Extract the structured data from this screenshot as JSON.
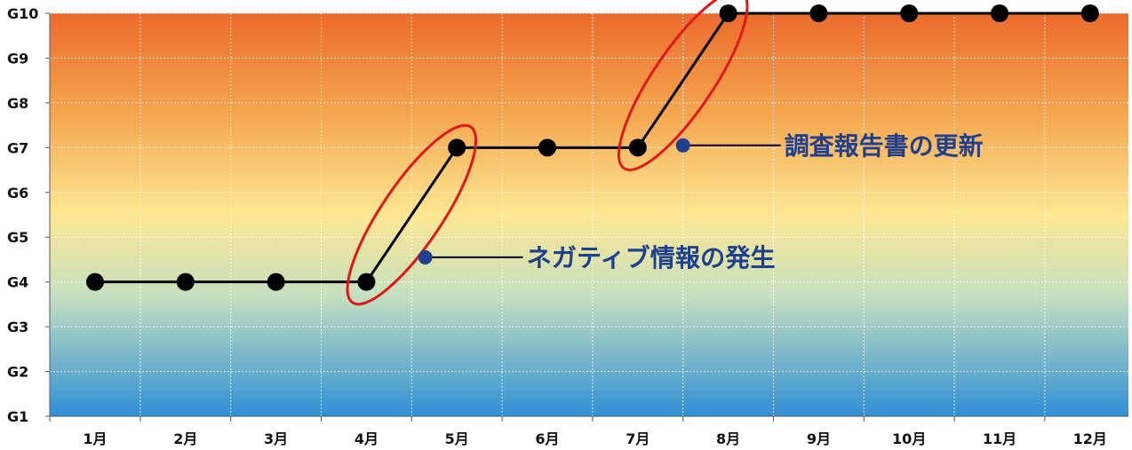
{
  "chart_data": {
    "type": "line",
    "categories": [
      "1月",
      "2月",
      "3月",
      "4月",
      "5月",
      "6月",
      "7月",
      "8月",
      "9月",
      "10月",
      "11月",
      "12月"
    ],
    "y_levels": [
      "G1",
      "G2",
      "G3",
      "G4",
      "G5",
      "G6",
      "G7",
      "G8",
      "G9",
      "G10"
    ],
    "ylim": [
      1,
      10
    ],
    "series": [
      {
        "values": [
          4,
          4,
          4,
          4,
          7,
          7,
          7,
          10,
          10,
          10,
          10,
          10
        ]
      }
    ],
    "grid": true,
    "background": "gradient",
    "annotations": [
      {
        "text": "ネガティブ情報の発生",
        "x": 4.65,
        "y": 4.55
      },
      {
        "text": "調査報告書の更新",
        "x": 7.5,
        "y": 7.05
      }
    ],
    "highlights": [
      {
        "from": 4,
        "to": 5
      },
      {
        "from": 7,
        "to": 8
      }
    ]
  },
  "colors": {
    "line": "#000000",
    "marker": "#000000",
    "annotation_dot": "#1f3f8f",
    "annotation_text": "#1f3f8f",
    "highlight": "#e01818",
    "gradient_top": "#ec6a2c",
    "gradient_mid": "#fde792",
    "gradient_bottom": "#2f8fd6"
  }
}
